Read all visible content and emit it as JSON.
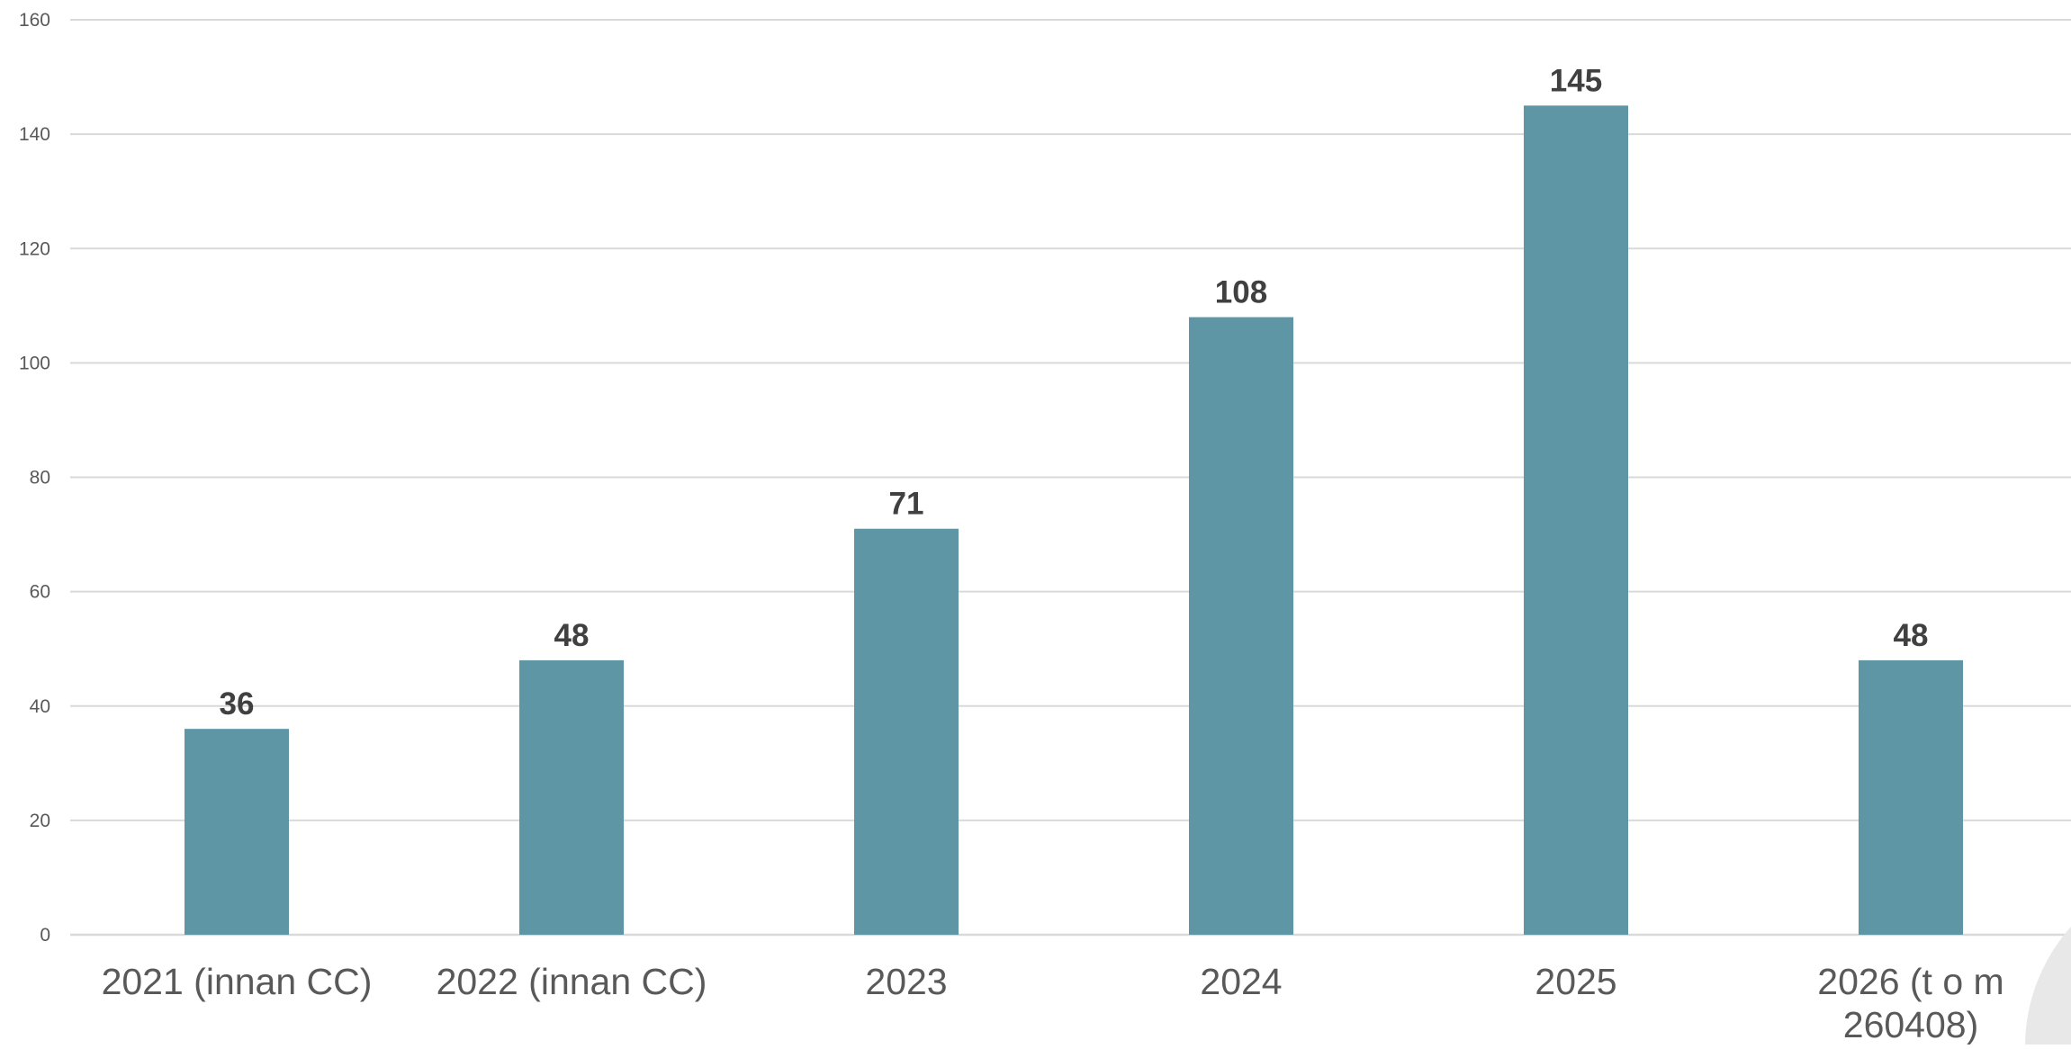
{
  "chart_data": {
    "type": "bar",
    "categories": [
      [
        "2021 (innan CC)"
      ],
      [
        "2022 (innan CC)"
      ],
      [
        "2023"
      ],
      [
        "2024"
      ],
      [
        "2025"
      ],
      [
        "2026 (t o m",
        "260408)"
      ]
    ],
    "values": [
      36,
      48,
      71,
      108,
      145,
      48
    ],
    "data_labels": [
      "36",
      "48",
      "71",
      "108",
      "145",
      "48"
    ],
    "yticks": [
      0,
      20,
      40,
      60,
      80,
      100,
      120,
      140,
      160
    ],
    "ylim": [
      0,
      160
    ],
    "grid": true,
    "title": "",
    "xlabel": "",
    "ylabel": "",
    "bar_color": "#5e96a6"
  }
}
